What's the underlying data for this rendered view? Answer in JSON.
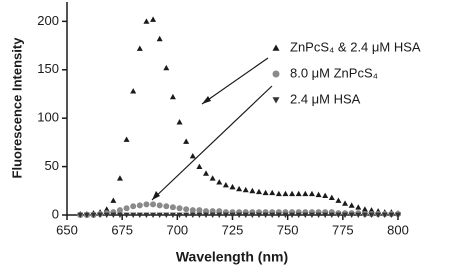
{
  "chart_data": {
    "type": "scatter",
    "x_label": "Wavelength (nm)",
    "y_label": "Fluorescence Intensity",
    "x": [
      656,
      659,
      662,
      665,
      668,
      671,
      674,
      677,
      680,
      683,
      686,
      689,
      692,
      695,
      698,
      701,
      704,
      707,
      710,
      713,
      716,
      719,
      722,
      725,
      728,
      731,
      734,
      737,
      740,
      743,
      746,
      749,
      752,
      755,
      758,
      761,
      764,
      767,
      770,
      773,
      776,
      779,
      782,
      785,
      788,
      791,
      794,
      797,
      800
    ],
    "series": [
      {
        "name": "ZnPcS₄ & 2.4 μM HSA",
        "color": "#1a1a1a",
        "marker": "triangle",
        "values": [
          1,
          1,
          2,
          3,
          6,
          15,
          38,
          78,
          128,
          172,
          200,
          202,
          182,
          152,
          122,
          96,
          76,
          61,
          50,
          43,
          38,
          34,
          31,
          29,
          27,
          26,
          25,
          24,
          23,
          23,
          22,
          22,
          22,
          22,
          22,
          22,
          21,
          20,
          18,
          15,
          12,
          10,
          8,
          6,
          5,
          4,
          3,
          3,
          2
        ]
      },
      {
        "name": "8.0 μM ZnPcS₄",
        "color": "#8a8a8a",
        "marker": "circle",
        "values": [
          0,
          0,
          0,
          1,
          2,
          3,
          5,
          7,
          9,
          10,
          11,
          11,
          10,
          9,
          8,
          7,
          6,
          5,
          5,
          4,
          4,
          4,
          3,
          3,
          3,
          3,
          3,
          3,
          3,
          3,
          3,
          3,
          3,
          3,
          3,
          3,
          3,
          3,
          3,
          2,
          2,
          2,
          2,
          1,
          1,
          1,
          1,
          1,
          1
        ]
      },
      {
        "name": "2.4 μM HSA",
        "color": "#333333",
        "marker": "triangle-down",
        "values": [
          0,
          0,
          0,
          0,
          0,
          0,
          0,
          0,
          0,
          0,
          0,
          0,
          0,
          0,
          0,
          0,
          0,
          0,
          0,
          0,
          0,
          0,
          0,
          0,
          0,
          0,
          0,
          0,
          0,
          0,
          0,
          0,
          0,
          0,
          0,
          0,
          0,
          0,
          0,
          0,
          0,
          0,
          0,
          0,
          0,
          0,
          0,
          0,
          0
        ]
      }
    ],
    "xlim": [
      650,
      800
    ],
    "xticks": [
      650,
      675,
      700,
      725,
      750,
      775,
      800
    ],
    "ylim": [
      0,
      220
    ],
    "yticks": [
      0,
      50,
      100,
      150,
      200
    ]
  }
}
